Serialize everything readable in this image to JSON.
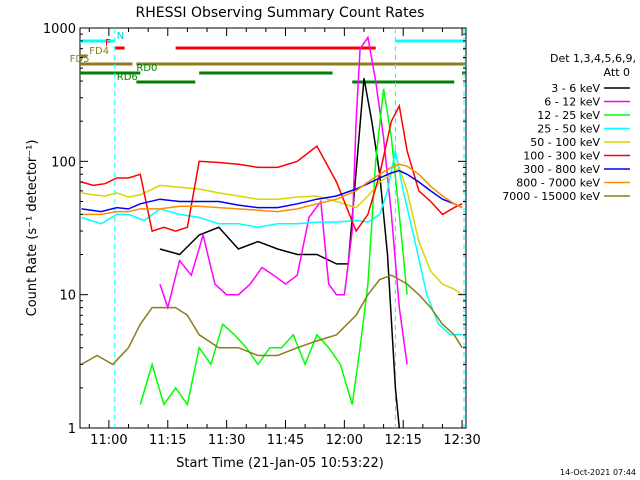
{
  "chart_data": {
    "type": "line",
    "title": "RHESSI Observing Summary Count Rates",
    "xlabel": "Start Time (21-Jan-05 10:53:22)",
    "ylabel": "Count Rate (s⁻¹ detector⁻¹)",
    "y_scale": "log",
    "ylim": [
      1,
      1000
    ],
    "xlim_minutes": [
      -0.37,
      98
    ],
    "x_tick_minutes": [
      7,
      22,
      37,
      52,
      67,
      82,
      97
    ],
    "x_ticks": [
      "11:00",
      "11:15",
      "11:30",
      "11:45",
      "12:00",
      "12:15",
      "12:30"
    ],
    "y_ticks": [
      1,
      10,
      100,
      1000
    ],
    "y_tick_labels": [
      "1",
      "10",
      "100",
      "1000"
    ],
    "grid": false,
    "legend": {
      "placement": "right",
      "header1": "Det 1,3,4,5,6,9,",
      "header2": "Att 0"
    },
    "timestamp": "14-Oct-2021 07:44",
    "series": [
      {
        "name": "3 - 6 keV",
        "color": "#000000",
        "x": [
          20,
          25,
          30,
          35,
          40,
          45,
          50,
          55,
          60,
          65,
          68,
          72,
          74,
          76,
          78,
          80,
          81
        ],
        "values": [
          22,
          20,
          28,
          32,
          22,
          25,
          22,
          20,
          20,
          17,
          17,
          420,
          200,
          80,
          20,
          2,
          1
        ]
      },
      {
        "name": "6 - 12 keV",
        "color": "#ff00ff",
        "x": [
          20,
          22,
          25,
          28,
          31,
          34,
          37,
          40,
          43,
          46,
          49,
          52,
          55,
          58,
          61,
          63,
          65,
          67,
          69,
          70,
          71,
          73,
          75,
          77,
          79,
          81,
          83
        ],
        "values": [
          12,
          8,
          18,
          14,
          28,
          12,
          10,
          10,
          12,
          16,
          14,
          12,
          14,
          38,
          50,
          12,
          10,
          10,
          30,
          200,
          700,
          850,
          400,
          150,
          40,
          8,
          3
        ]
      },
      {
        "name": "12 - 25 keV",
        "color": "#00ff00",
        "x": [
          15,
          18,
          21,
          24,
          27,
          30,
          33,
          36,
          39,
          42,
          45,
          48,
          51,
          54,
          57,
          60,
          63,
          66,
          69,
          71,
          73,
          75,
          77,
          79,
          81,
          83
        ],
        "values": [
          1.5,
          3,
          1.5,
          2,
          1.5,
          4,
          3,
          6,
          5,
          4,
          3,
          4,
          4,
          5,
          3,
          5,
          4,
          3,
          1.5,
          4,
          12,
          100,
          350,
          150,
          40,
          10
        ]
      },
      {
        "name": "25 - 50 keV",
        "color": "#00ffff",
        "x": [
          0,
          5,
          9,
          12,
          16,
          20,
          25,
          30,
          35,
          40,
          45,
          50,
          55,
          60,
          65,
          70,
          73,
          76,
          78,
          80,
          82,
          85,
          88,
          91,
          94,
          97
        ],
        "values": [
          38,
          34,
          40,
          40,
          36,
          44,
          40,
          38,
          34,
          34,
          32,
          34,
          34,
          35,
          35,
          36,
          35,
          40,
          60,
          120,
          60,
          25,
          10,
          6,
          5,
          5
        ]
      },
      {
        "name": "50 - 100 keV",
        "color": "#d6d600",
        "x": [
          0,
          3,
          6,
          9,
          12,
          15,
          20,
          25,
          30,
          35,
          40,
          45,
          50,
          55,
          60,
          65,
          70,
          73,
          76,
          79,
          81,
          83,
          86,
          89,
          92,
          95,
          97
        ],
        "values": [
          58,
          56,
          55,
          58,
          54,
          56,
          66,
          64,
          62,
          58,
          55,
          52,
          52,
          54,
          55,
          50,
          45,
          55,
          70,
          80,
          90,
          60,
          25,
          15,
          12,
          11,
          10
        ]
      },
      {
        "name": "100 - 300 keV",
        "color": "#ff0000",
        "x": [
          0,
          3,
          6,
          9,
          12,
          15,
          18,
          21,
          24,
          27,
          30,
          35,
          40,
          45,
          50,
          55,
          60,
          65,
          70,
          73,
          76,
          79,
          81,
          83,
          86,
          89,
          92,
          95,
          97
        ],
        "values": [
          70,
          66,
          68,
          75,
          75,
          80,
          30,
          32,
          30,
          32,
          100,
          98,
          95,
          90,
          90,
          100,
          130,
          70,
          30,
          40,
          80,
          200,
          260,
          120,
          60,
          50,
          40,
          45,
          48
        ]
      },
      {
        "name": "300 - 800 keV",
        "color": "#0000ff",
        "x": [
          0,
          5,
          9,
          12,
          15,
          20,
          25,
          30,
          35,
          40,
          45,
          50,
          55,
          60,
          65,
          70,
          73,
          76,
          79,
          81,
          83,
          86,
          89,
          92,
          95,
          97
        ],
        "values": [
          44,
          42,
          45,
          44,
          48,
          52,
          50,
          50,
          50,
          47,
          45,
          45,
          48,
          52,
          55,
          62,
          68,
          75,
          82,
          85,
          80,
          70,
          60,
          52,
          48,
          45
        ]
      },
      {
        "name": "800 - 7000 keV",
        "color": "#ff8c00",
        "x": [
          0,
          5,
          9,
          12,
          15,
          20,
          25,
          30,
          35,
          40,
          45,
          50,
          55,
          60,
          65,
          70,
          73,
          76,
          79,
          81,
          83,
          86,
          89,
          92,
          95,
          97
        ],
        "values": [
          40,
          40,
          42,
          42,
          44,
          44,
          46,
          46,
          45,
          44,
          43,
          42,
          44,
          48,
          52,
          60,
          70,
          80,
          90,
          95,
          92,
          80,
          65,
          55,
          48,
          45
        ]
      },
      {
        "name": "7000 - 15000 keV",
        "color": "#8b7d1a",
        "x": [
          0,
          4,
          8,
          12,
          15,
          18,
          21,
          24,
          27,
          30,
          35,
          40,
          45,
          50,
          55,
          60,
          65,
          70,
          73,
          76,
          79,
          81,
          83,
          86,
          89,
          92,
          95,
          97
        ],
        "values": [
          3,
          3.5,
          3,
          4,
          6,
          8,
          8,
          8,
          7,
          5,
          4,
          4,
          3.5,
          3.5,
          4,
          4.5,
          5,
          7,
          10,
          13,
          14,
          13,
          12,
          10,
          8,
          6,
          5,
          4
        ]
      }
    ],
    "intervals": [
      {
        "label": "N",
        "color": "#00ffff",
        "row": 0,
        "label_x": 9,
        "segments": [
          [
            -0.37,
            8.5
          ],
          [
            80,
            98
          ]
        ]
      },
      {
        "label": "F",
        "color": "#ff0000",
        "row": 1,
        "label_x": 6,
        "segments": [
          [
            8.5,
            11
          ],
          [
            24,
            75
          ]
        ]
      },
      {
        "label": "FD4",
        "color": "#8b7d1a",
        "row": 2,
        "label_x": 2,
        "segments": [
          [
            -0.37,
            1.5
          ]
        ]
      },
      {
        "label": "FD5",
        "color": "#8b7d1a",
        "row": 3,
        "label_x": -3,
        "segments": [
          [
            -0.37,
            13
          ],
          [
            14,
            98
          ]
        ]
      },
      {
        "label": "RD0",
        "color": "#008000",
        "row": 4,
        "label_x": 14,
        "segments": [
          [
            -0.37,
            15
          ],
          [
            30,
            64
          ],
          [
            97,
            98
          ]
        ]
      },
      {
        "label": "RD6",
        "color": "#008000",
        "row": 5,
        "label_x": 9,
        "segments": [
          [
            14,
            29
          ],
          [
            69,
            95
          ]
        ]
      }
    ],
    "vlines": [
      {
        "x": 8.5,
        "color": "#00ffff"
      },
      {
        "x": 80,
        "color": "#00ffff"
      },
      {
        "x": 97.5,
        "color": "#00ffff"
      }
    ]
  }
}
